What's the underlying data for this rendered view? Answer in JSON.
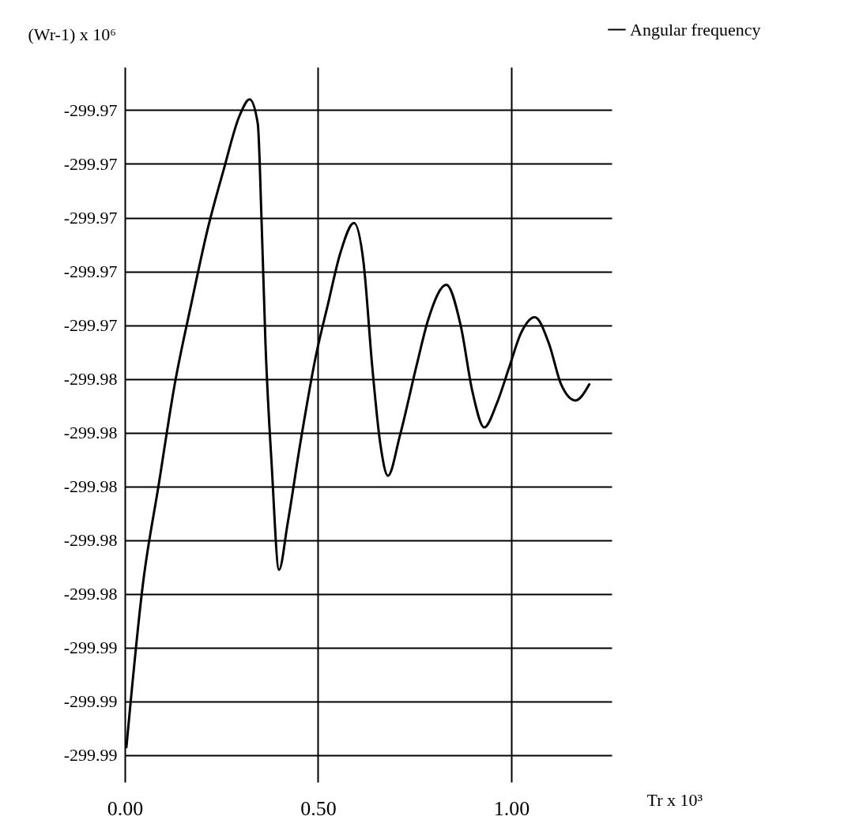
{
  "chart_data": {
    "type": "line",
    "ylabel": "(Wr-1) x 10⁶",
    "xlabel": "Tr x 10³",
    "legend": "top right",
    "grid": true,
    "marker": "none",
    "line_style": "solid",
    "xlim": [
      0,
      1.26
    ],
    "ylim": [
      -299.991,
      -299.9644
    ],
    "xticks": [
      {
        "value": 0,
        "label": "0.00"
      },
      {
        "value": 0.5,
        "label": "0.50"
      },
      {
        "value": 1,
        "label": "1.00"
      }
    ],
    "yticks": [
      {
        "value": -299.966,
        "label": "-299.97"
      },
      {
        "value": -299.968,
        "label": "-299.97"
      },
      {
        "value": -299.97,
        "label": "-299.97"
      },
      {
        "value": -299.972,
        "label": "-299.97"
      },
      {
        "value": -299.974,
        "label": "-299.97"
      },
      {
        "value": -299.976,
        "label": "-299.98"
      },
      {
        "value": -299.978,
        "label": "-299.98"
      },
      {
        "value": -299.98,
        "label": "-299.98"
      },
      {
        "value": -299.982,
        "label": "-299.98"
      },
      {
        "value": -299.984,
        "label": "-299.98"
      },
      {
        "value": -299.986,
        "label": "-299.99"
      },
      {
        "value": -299.988,
        "label": "-299.99"
      },
      {
        "value": -299.99,
        "label": "-299.99"
      }
    ],
    "x": [
      0.004,
      0.047,
      0.088,
      0.129,
      0.172,
      0.213,
      0.256,
      0.297,
      0.323,
      0.344,
      0.354,
      0.364,
      0.38,
      0.399,
      0.421,
      0.454,
      0.495,
      0.526,
      0.558,
      0.593,
      0.618,
      0.64,
      0.661,
      0.681,
      0.712,
      0.755,
      0.785,
      0.832,
      0.869,
      0.9,
      0.93,
      0.963,
      0.994,
      1.025,
      1.061,
      1.098,
      1.129,
      1.166,
      1.202
    ],
    "series": [
      {
        "name": "Angular frequency",
        "color": "#000000",
        "values": [
          -299.9897,
          -299.9836,
          -299.9799,
          -299.9762,
          -299.9732,
          -299.9705,
          -299.9682,
          -299.9662,
          -299.9656,
          -299.9665,
          -299.9702,
          -299.9747,
          -299.9792,
          -299.9831,
          -299.9814,
          -299.9784,
          -299.9751,
          -299.9732,
          -299.9713,
          -299.9702,
          -299.9717,
          -299.9755,
          -299.9784,
          -299.9796,
          -299.9781,
          -299.9755,
          -299.9738,
          -299.9725,
          -299.974,
          -299.9765,
          -299.9778,
          -299.9769,
          -299.9756,
          -299.9743,
          -299.9737,
          -299.9747,
          -299.9762,
          -299.9768,
          -299.9762
        ]
      }
    ]
  }
}
